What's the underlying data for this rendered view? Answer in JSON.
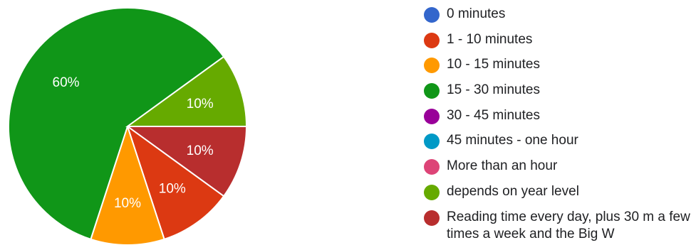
{
  "chart_data": {
    "type": "pie",
    "slices": [
      {
        "label": "0 minutes",
        "value": 0,
        "color": "#3366cc"
      },
      {
        "label": "1 - 10 minutes",
        "value": 10,
        "color": "#dc3912",
        "data_label": "10%"
      },
      {
        "label": "10 - 15 minutes",
        "value": 10,
        "color": "#ff9900",
        "data_label": "10%"
      },
      {
        "label": "15 - 30 minutes",
        "value": 60,
        "color": "#109618",
        "data_label": "60%"
      },
      {
        "label": "30 - 45 minutes",
        "value": 0,
        "color": "#990099"
      },
      {
        "label": "45 minutes - one hour",
        "value": 0,
        "color": "#0099c6"
      },
      {
        "label": "More than an hour",
        "value": 0,
        "color": "#dd4477"
      },
      {
        "label": "depends on year level",
        "value": 10,
        "color": "#66aa00",
        "data_label": "10%"
      },
      {
        "label": "Reading time every day, plus 30 m a few times a week and the Big W",
        "value": 10,
        "color": "#b82e2e",
        "data_label": "10%"
      }
    ],
    "draw_order": [
      8,
      1,
      2,
      3,
      7
    ],
    "legend_position": "right"
  }
}
